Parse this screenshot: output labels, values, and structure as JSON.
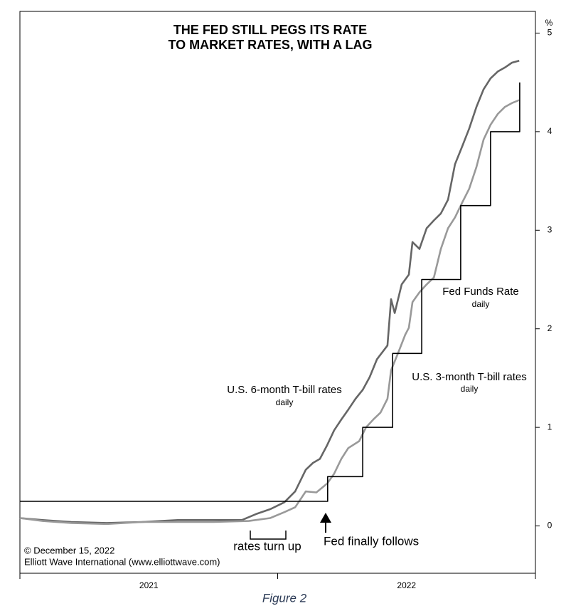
{
  "chart_data": {
    "type": "line",
    "title": [
      "THE FED STILL PEGS ITS RATE",
      "TO MARKET RATES, WITH A LAG"
    ],
    "y_unit": "%",
    "caption": "Figure 2",
    "source": [
      "© December 15, 2022",
      "Elliott Wave International (www.elliottwave.com)"
    ],
    "annotations": [
      "rates turn up",
      "Fed finally follows"
    ],
    "xlim": [
      2021,
      2023
    ],
    "xticks": [
      {
        "value": 2021.5,
        "label": "2021"
      },
      {
        "value": 2022.5,
        "label": "2022"
      }
    ],
    "ylim": [
      -0.48,
      5.22
    ],
    "yticks": [
      0,
      1,
      2,
      3,
      4,
      5
    ],
    "series": [
      {
        "name": "U.S. 6-month T-bill rates",
        "note": "daily",
        "color": "#666666",
        "x": [
          2021.0,
          2021.088,
          2021.199,
          2021.337,
          2021.474,
          2021.612,
          2021.75,
          2021.861,
          2021.916,
          2021.971,
          2022.026,
          2022.068,
          2022.109,
          2022.137,
          2022.164,
          2022.192,
          2022.219,
          2022.247,
          2022.274,
          2022.302,
          2022.33,
          2022.357,
          2022.385,
          2022.426,
          2022.44,
          2022.454,
          2022.481,
          2022.509,
          2022.523,
          2022.55,
          2022.578,
          2022.606,
          2022.633,
          2022.661,
          2022.688,
          2022.716,
          2022.743,
          2022.771,
          2022.799,
          2022.826,
          2022.854,
          2022.881,
          2022.909,
          2022.937
        ],
        "values": [
          0.08,
          0.06,
          0.04,
          0.03,
          0.04,
          0.06,
          0.06,
          0.06,
          0.12,
          0.17,
          0.24,
          0.35,
          0.57,
          0.64,
          0.68,
          0.82,
          0.97,
          1.08,
          1.18,
          1.29,
          1.38,
          1.51,
          1.69,
          1.83,
          2.3,
          2.16,
          2.45,
          2.55,
          2.88,
          2.81,
          3.02,
          3.1,
          3.17,
          3.31,
          3.67,
          3.85,
          4.03,
          4.25,
          4.43,
          4.54,
          4.61,
          4.65,
          4.7,
          4.72
        ]
      },
      {
        "name": "U.S. 3-month T-bill rates",
        "note": "daily",
        "color": "#999999",
        "x": [
          2021.0,
          2021.088,
          2021.199,
          2021.337,
          2021.474,
          2021.612,
          2021.75,
          2021.888,
          2021.971,
          2022.026,
          2022.068,
          2022.109,
          2022.15,
          2022.192,
          2022.219,
          2022.247,
          2022.274,
          2022.316,
          2022.343,
          2022.371,
          2022.399,
          2022.426,
          2022.44,
          2022.468,
          2022.495,
          2022.509,
          2022.523,
          2022.55,
          2022.578,
          2022.606,
          2022.633,
          2022.661,
          2022.688,
          2022.716,
          2022.743,
          2022.771,
          2022.799,
          2022.826,
          2022.854,
          2022.881,
          2022.909,
          2022.937
        ],
        "values": [
          0.08,
          0.05,
          0.03,
          0.02,
          0.04,
          0.04,
          0.04,
          0.05,
          0.08,
          0.14,
          0.19,
          0.35,
          0.34,
          0.43,
          0.53,
          0.68,
          0.79,
          0.86,
          1.0,
          1.08,
          1.15,
          1.29,
          1.58,
          1.76,
          1.94,
          2.01,
          2.27,
          2.37,
          2.45,
          2.52,
          2.81,
          3.02,
          3.13,
          3.28,
          3.42,
          3.64,
          3.92,
          4.07,
          4.18,
          4.25,
          4.29,
          4.32
        ]
      },
      {
        "name": "Fed Funds Rate",
        "note": "daily",
        "color": "#000000",
        "x": [
          2021.0,
          2022.194,
          2022.194,
          2022.33,
          2022.33,
          2022.446,
          2022.446,
          2022.559,
          2022.559,
          2022.71,
          2022.71,
          2022.826,
          2022.826,
          2022.939,
          2022.939
        ],
        "values": [
          0.25,
          0.25,
          0.5,
          0.5,
          1.0,
          1.0,
          1.75,
          1.75,
          2.5,
          2.5,
          3.25,
          3.25,
          4.0,
          4.0,
          4.5
        ]
      }
    ]
  }
}
